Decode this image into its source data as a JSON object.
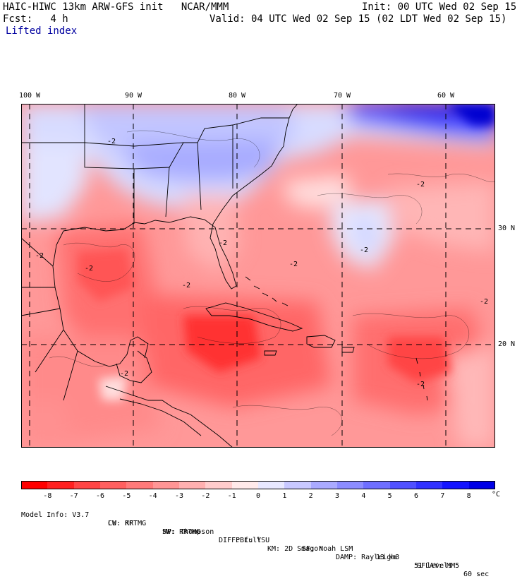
{
  "header": {
    "title_left": "HAIC-HIWC 13km ARW-GFS init   NCAR/MMM",
    "init": "Init: 00 UTC Wed 02 Sep 15",
    "fcst": "Fcst:   4 h",
    "valid": "Valid: 04 UTC Wed 02 Sep 15 (02 LDT Wed 02 Sep 15)",
    "field": "Lifted index"
  },
  "map": {
    "lon_labels": [
      "100 W",
      "90 W",
      "80 W",
      "70 W",
      "60 W"
    ],
    "lat_labels": [
      "30 N",
      "20 N"
    ],
    "contour_labels": [
      "-2",
      "-2",
      "-2",
      "-2",
      "-2",
      "-2",
      "-2",
      "-2",
      "-2",
      "-2",
      "-2"
    ]
  },
  "colorbar": {
    "ticks": [
      "-8",
      "-7",
      "-6",
      "-5",
      "-4",
      "-3",
      "-2",
      "-1",
      "0",
      "1",
      "2",
      "3",
      "4",
      "5",
      "6",
      "7",
      "8"
    ],
    "unit": "°C",
    "colors": [
      "#ff0000",
      "#ff2020",
      "#ff4545",
      "#ff6060",
      "#ff7a7a",
      "#ff9595",
      "#ffb0b0",
      "#ffcccc",
      "#ffeaea",
      "#e8e8ff",
      "#c8c8ff",
      "#aaaaff",
      "#8c8cff",
      "#6e6eff",
      "#5050ff",
      "#3232ff",
      "#1414ff",
      "#0000e6"
    ]
  },
  "footer": {
    "row1": [
      "Model Info: V3.7",
      "CU: KF",
      "MP: Thompson",
      "PBL: YSU",
      "SF: Noah LSM",
      "13 km",
      "51 levels",
      "60 sec"
    ],
    "row2": [
      "LW: RRTMG",
      "SW: RRTMG",
      "DIFF: full",
      "KM: 2D Smagor",
      "DAMP: Rayleigh3",
      "SFLAY: MM5"
    ]
  }
}
